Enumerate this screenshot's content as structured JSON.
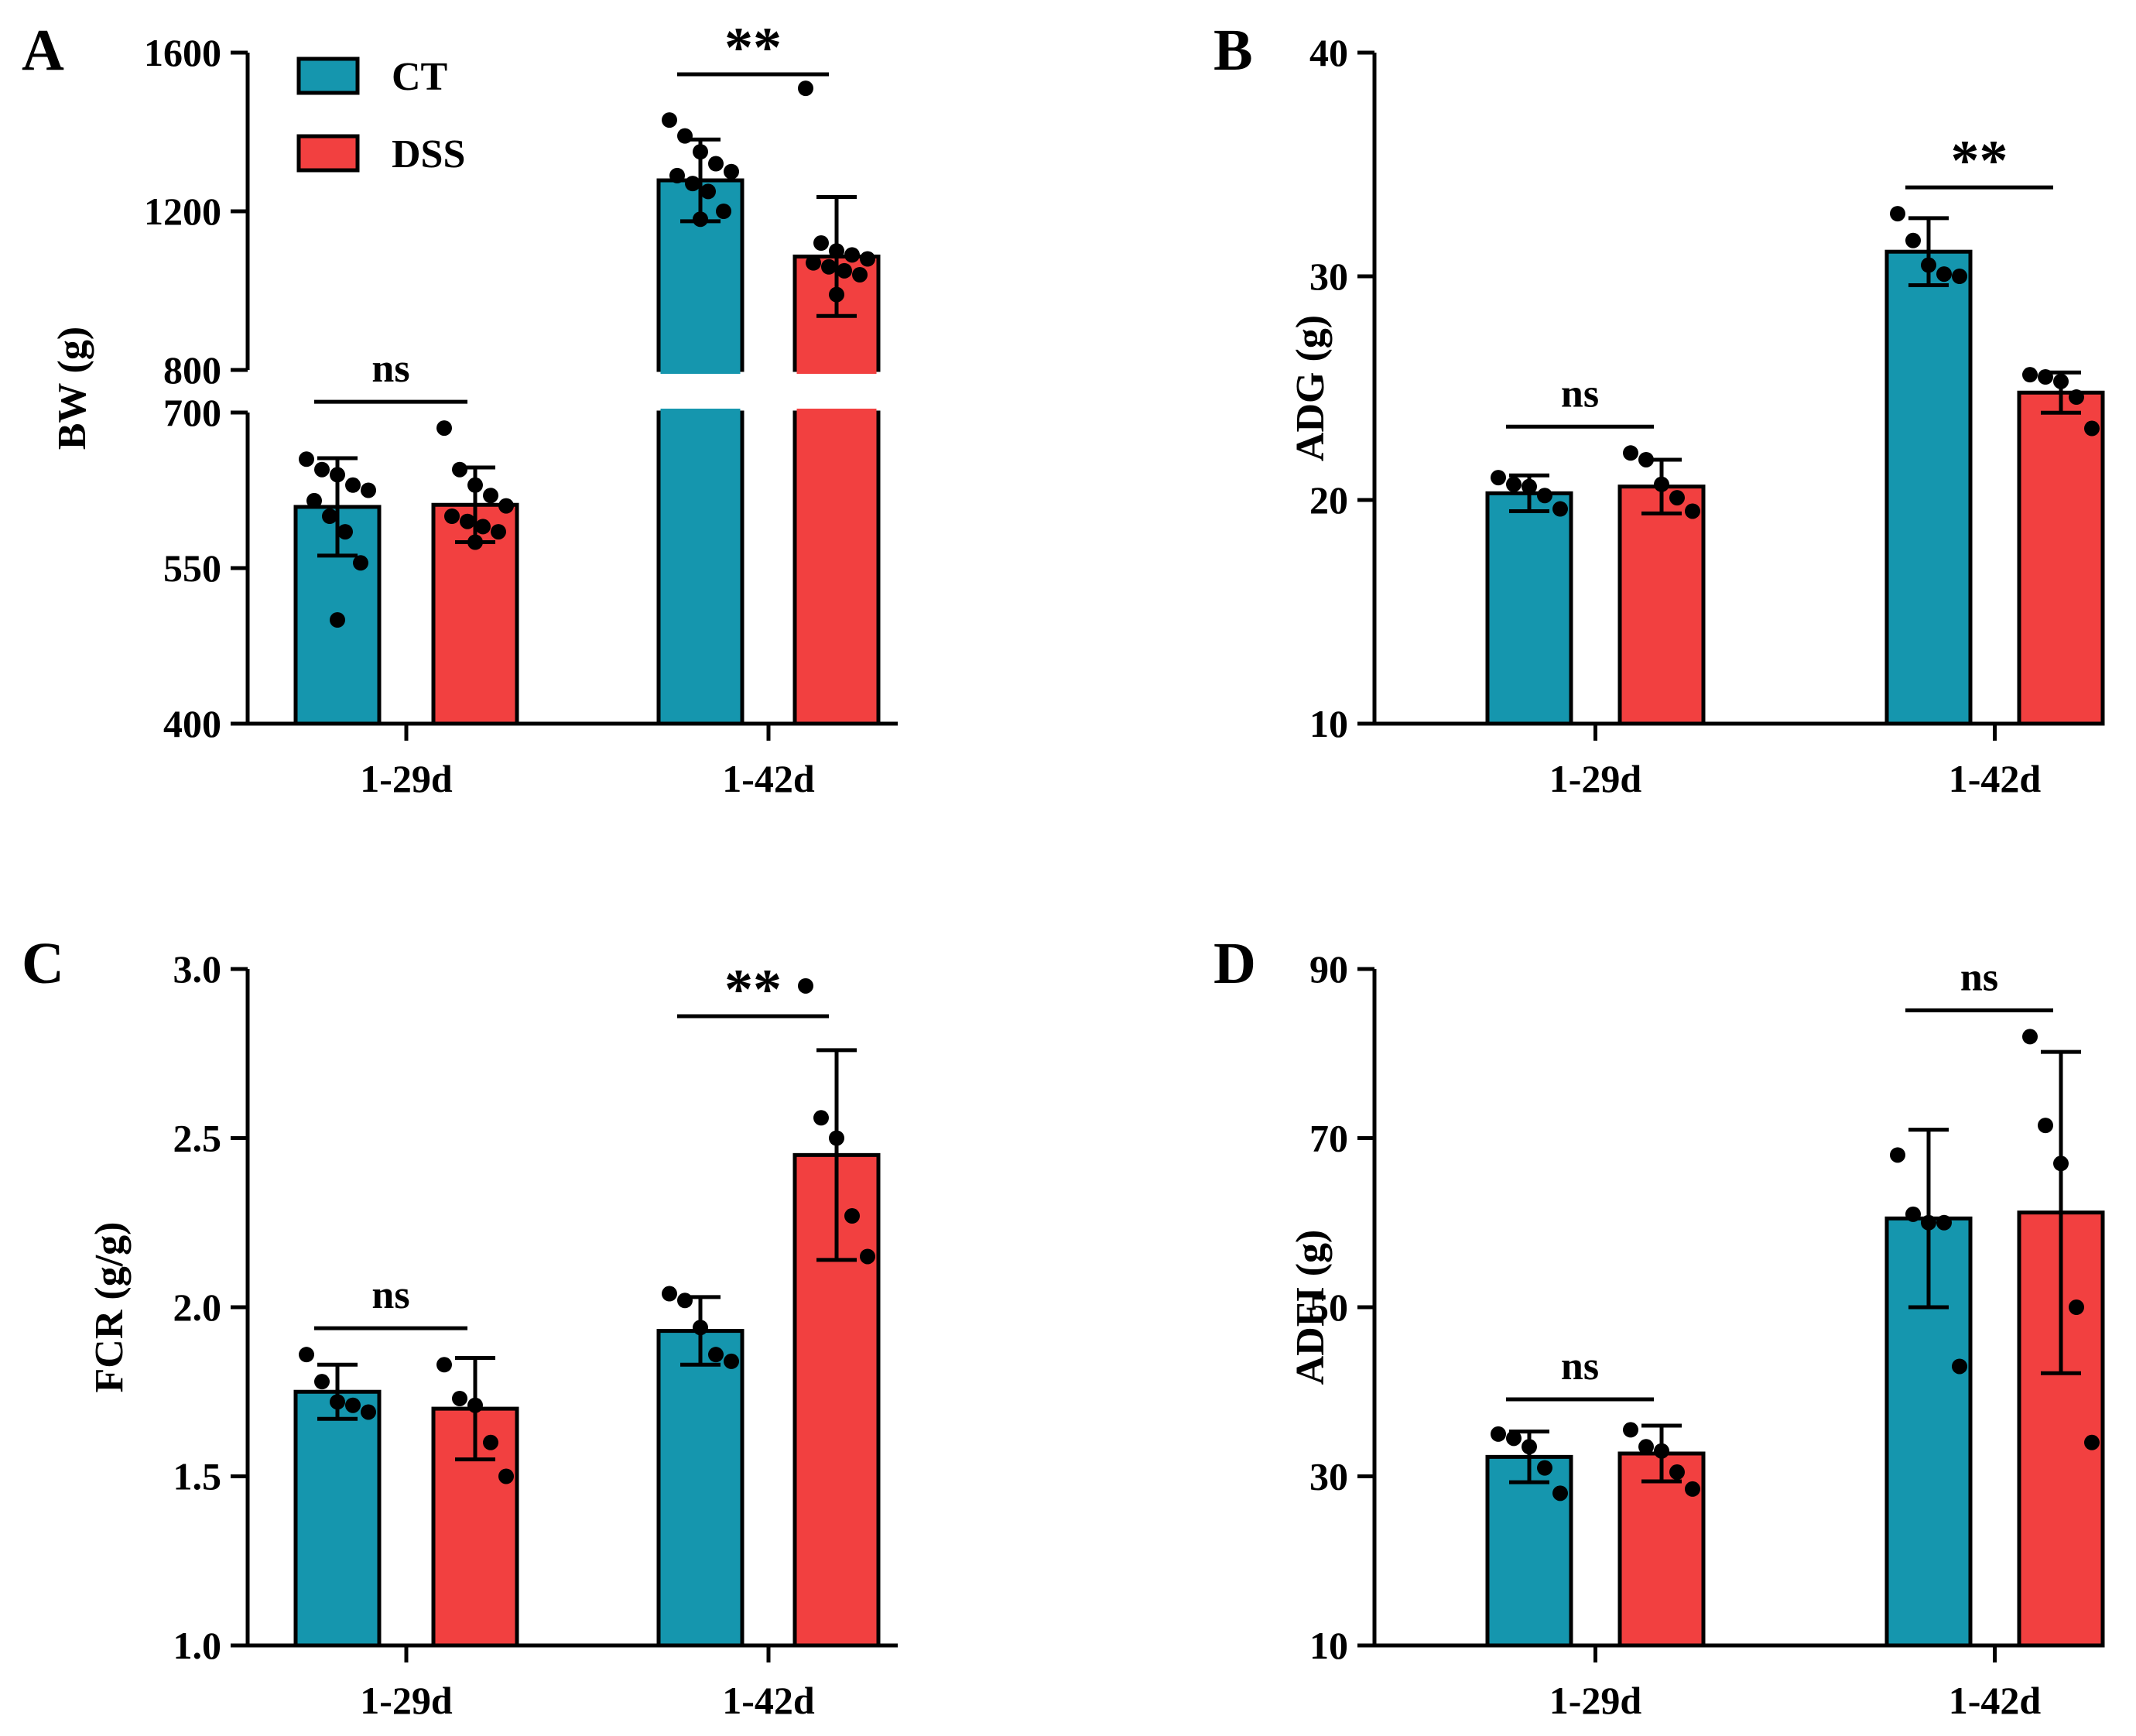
{
  "colors": {
    "CT": "#1596AE",
    "DSS": "#F24040",
    "ink": "#000000"
  },
  "legend": [
    {
      "label": "CT",
      "color": "#1596AE"
    },
    {
      "label": "DSS",
      "color": "#F24040"
    }
  ],
  "chart_data": [
    {
      "panel": "A",
      "type": "bar",
      "title": "",
      "xlabel": "",
      "ylabel": "BW (g)",
      "categories": [
        "1-29d",
        "1-42d"
      ],
      "axis_break": {
        "lower": [
          400,
          700
        ],
        "upper": [
          800,
          1600
        ]
      },
      "ylim": [
        400,
        1600
      ],
      "yticks": [
        {
          "value": 400,
          "label": "400"
        },
        {
          "value": 550,
          "label": "550"
        },
        {
          "value": 700,
          "label": "700"
        },
        {
          "value": 800,
          "label": "800"
        },
        {
          "value": 1200,
          "label": "1200"
        },
        {
          "value": 1600,
          "label": "1600"
        }
      ],
      "series": [
        {
          "name": "CT",
          "values": [
            609,
            1278
          ],
          "errors": [
            47,
            103
          ],
          "points": [
            [
              655,
              645,
              640,
              630,
              625,
              615,
              600,
              585,
              555,
              500
            ],
            [
              1430,
              1390,
              1350,
              1320,
              1300,
              1290,
              1270,
              1250,
              1200,
              1180
            ]
          ]
        },
        {
          "name": "DSS",
          "values": [
            611,
            1086
          ],
          "errors": [
            36,
            150
          ],
          "points": [
            [
              685,
              645,
              630,
              620,
              610,
              600,
              595,
              590,
              585,
              575
            ],
            [
              1510,
              1120,
              1100,
              1090,
              1080,
              1070,
              1060,
              1050,
              1040,
              990
            ]
          ]
        }
      ],
      "significance": [
        {
          "category": "1-29d",
          "label": "ns"
        },
        {
          "category": "1-42d",
          "label": "**"
        }
      ]
    },
    {
      "panel": "B",
      "type": "bar",
      "title": "",
      "xlabel": "",
      "ylabel": "ADG (g)",
      "categories": [
        "1-29d",
        "1-42d"
      ],
      "ylim": [
        10,
        40
      ],
      "yticks": [
        {
          "value": 10,
          "label": "10"
        },
        {
          "value": 20,
          "label": "20"
        },
        {
          "value": 30,
          "label": "30"
        },
        {
          "value": 40,
          "label": "40"
        }
      ],
      "series": [
        {
          "name": "CT",
          "values": [
            20.3,
            31.1
          ],
          "errors": [
            0.8,
            1.5
          ],
          "points": [
            [
              21.0,
              20.7,
              20.6,
              20.2,
              19.6
            ],
            [
              32.8,
              31.6,
              30.5,
              30.1,
              30.0
            ]
          ]
        },
        {
          "name": "DSS",
          "values": [
            20.6,
            24.8
          ],
          "errors": [
            1.2,
            0.9
          ],
          "points": [
            [
              22.1,
              21.8,
              20.7,
              20.1,
              19.5
            ],
            [
              25.6,
              25.5,
              25.3,
              24.6,
              23.2
            ]
          ]
        }
      ],
      "significance": [
        {
          "category": "1-29d",
          "label": "ns"
        },
        {
          "category": "1-42d",
          "label": "**"
        }
      ]
    },
    {
      "panel": "C",
      "type": "bar",
      "title": "",
      "xlabel": "",
      "ylabel": "FCR (g/g)",
      "categories": [
        "1-29d",
        "1-42d"
      ],
      "ylim": [
        1.0,
        3.0
      ],
      "yticks": [
        {
          "value": 1.0,
          "label": "1.0"
        },
        {
          "value": 1.5,
          "label": "1.5"
        },
        {
          "value": 2.0,
          "label": "2.0"
        },
        {
          "value": 2.5,
          "label": "2.5"
        },
        {
          "value": 3.0,
          "label": "3.0"
        }
      ],
      "series": [
        {
          "name": "CT",
          "values": [
            1.75,
            1.93
          ],
          "errors": [
            0.08,
            0.1
          ],
          "points": [
            [
              1.86,
              1.78,
              1.72,
              1.71,
              1.69
            ],
            [
              2.04,
              2.02,
              1.94,
              1.86,
              1.84
            ]
          ]
        },
        {
          "name": "DSS",
          "values": [
            1.7,
            2.45
          ],
          "errors": [
            0.15,
            0.31
          ],
          "points": [
            [
              1.83,
              1.73,
              1.71,
              1.6,
              1.5
            ],
            [
              2.95,
              2.56,
              2.5,
              2.27,
              2.15
            ]
          ]
        }
      ],
      "significance": [
        {
          "category": "1-29d",
          "label": "ns"
        },
        {
          "category": "1-42d",
          "label": "**"
        }
      ]
    },
    {
      "panel": "D",
      "type": "bar",
      "title": "",
      "xlabel": "",
      "ylabel": "ADFI (g)",
      "categories": [
        "1-29d",
        "1-42d"
      ],
      "ylim": [
        10,
        90
      ],
      "yticks": [
        {
          "value": 10,
          "label": "10"
        },
        {
          "value": 30,
          "label": "30"
        },
        {
          "value": 50,
          "label": "50"
        },
        {
          "value": 70,
          "label": "70"
        },
        {
          "value": 90,
          "label": "90"
        }
      ],
      "series": [
        {
          "name": "CT",
          "values": [
            32.3,
            60.5
          ],
          "errors": [
            3,
            10.5
          ],
          "points": [
            [
              35,
              34.5,
              33.5,
              31,
              28
            ],
            [
              68,
              61,
              60,
              60,
              43
            ]
          ]
        },
        {
          "name": "DSS",
          "values": [
            32.7,
            61.2
          ],
          "errors": [
            3.3,
            19
          ],
          "points": [
            [
              35.5,
              33.5,
              33,
              30.5,
              28.5
            ],
            [
              82,
              71.5,
              67,
              50,
              34
            ]
          ]
        }
      ],
      "significance": [
        {
          "category": "1-29d",
          "label": "ns"
        },
        {
          "category": "1-42d",
          "label": "ns"
        }
      ]
    }
  ]
}
